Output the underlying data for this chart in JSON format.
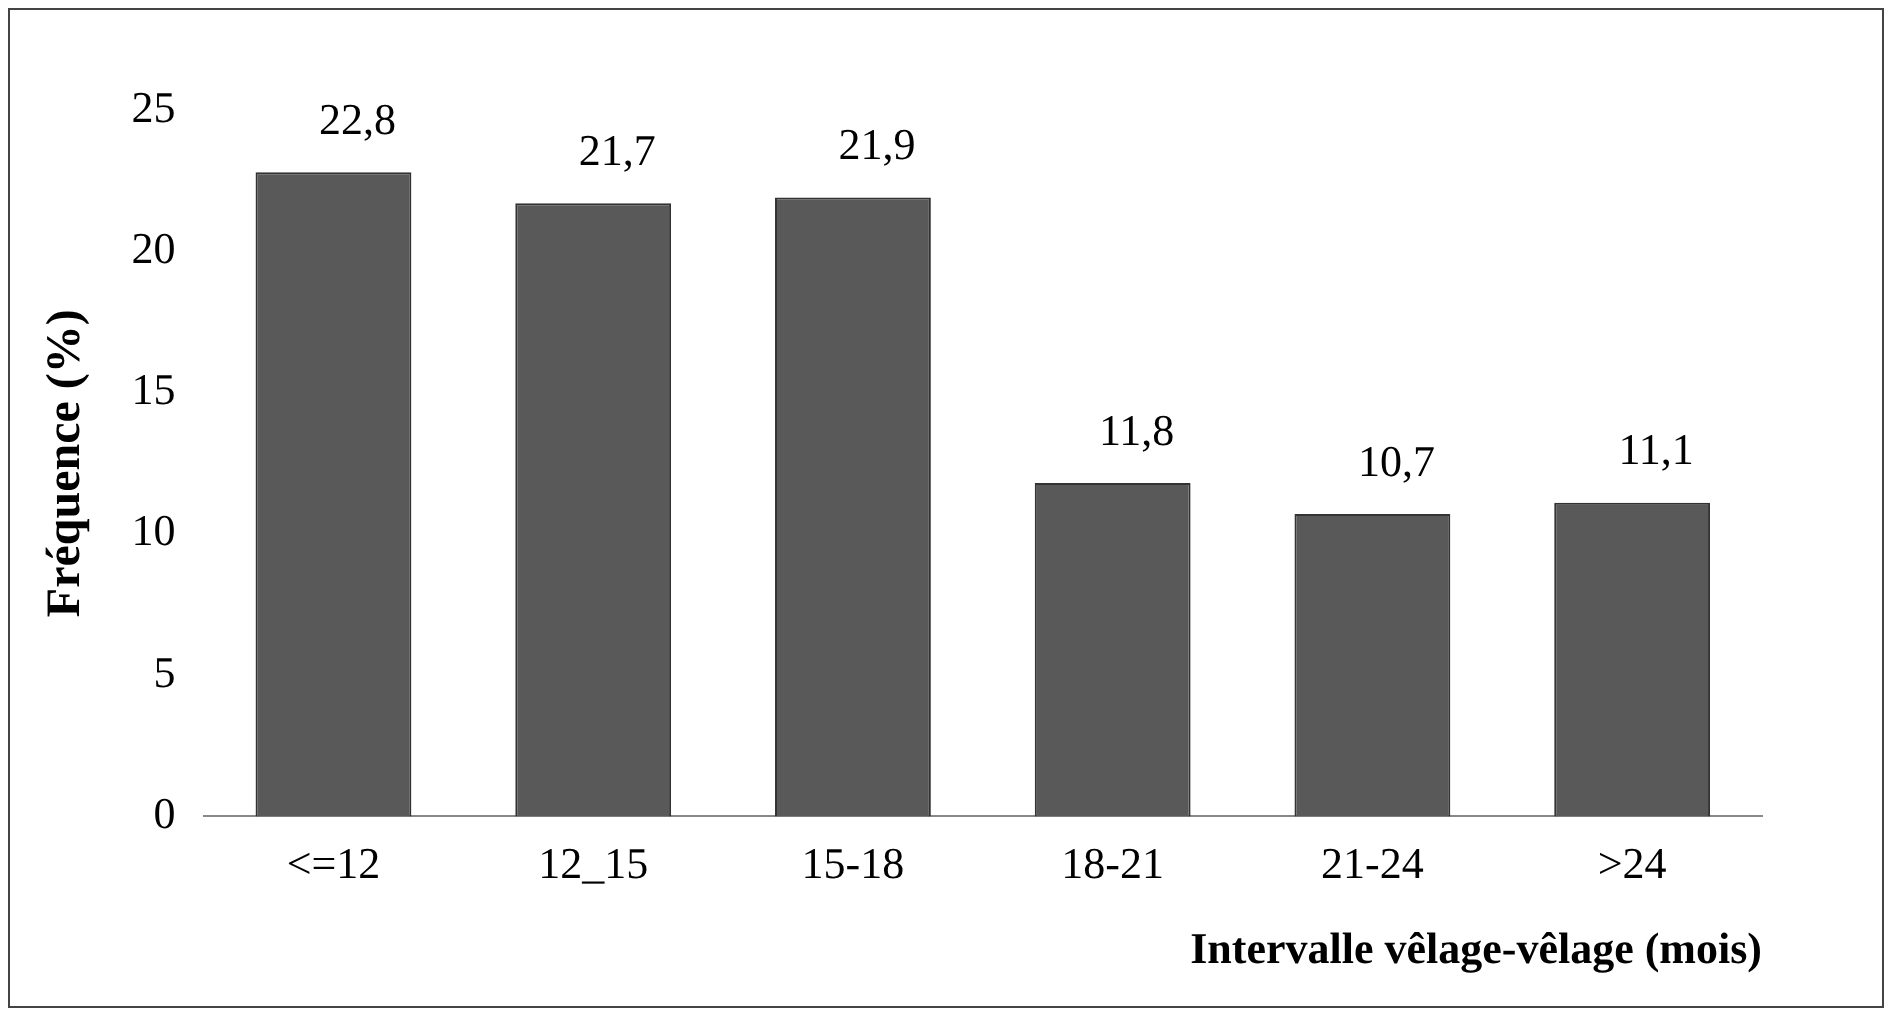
{
  "chart_data": {
    "type": "bar",
    "xlabel": "Intervalle vêlage-vêlage (mois)",
    "ylabel": "Fréquence (%)",
    "categories": [
      "<=12",
      "12_15",
      "15-18",
      "18-21",
      "21-24",
      ">24"
    ],
    "values": [
      22.8,
      21.7,
      21.9,
      11.8,
      10.7,
      11.1
    ],
    "value_labels": [
      "22,8",
      "21,7",
      "21,9",
      "11,8",
      "10,7",
      "11,1"
    ],
    "color": "#595959",
    "ylim": [
      0,
      25
    ],
    "yticks": [
      0,
      5,
      10,
      15,
      20,
      25
    ],
    "grid": false,
    "legend": false
  }
}
